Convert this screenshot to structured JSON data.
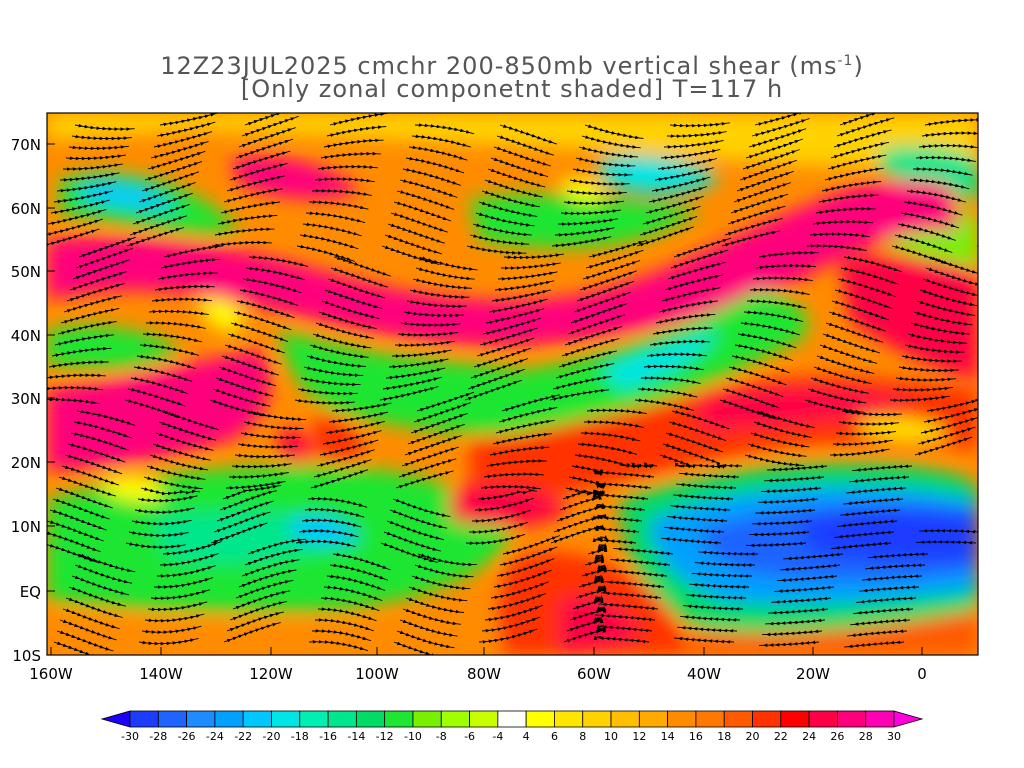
{
  "title": {
    "line1_main": "12Z23JUL2025 cmchr 200-850mb vertical shear (ms",
    "line1_sup": "-1",
    "line1_end": ")",
    "line2": "[Only zonal componetnt shaded] T=117 h"
  },
  "map": {
    "lat_labels": [
      "70N",
      "60N",
      "50N",
      "40N",
      "30N",
      "20N",
      "10N",
      "EQ",
      "10S"
    ],
    "lon_labels": [
      "160W",
      "140W",
      "120W",
      "100W",
      "80W",
      "60W",
      "40W",
      "20W",
      "0"
    ]
  },
  "colorbar": {
    "tick_labels": [
      "-30",
      "-28",
      "-26",
      "-24",
      "-22",
      "-20",
      "-18",
      "-16",
      "-14",
      "-12",
      "-10",
      "-8",
      "-6",
      "-4",
      "4",
      "6",
      "8",
      "10",
      "12",
      "14",
      "16",
      "18",
      "20",
      "22",
      "24",
      "26",
      "28",
      "30"
    ],
    "colors": [
      "#1d00fa",
      "#1e3cff",
      "#1f64ff",
      "#1e8cff",
      "#00a0ff",
      "#00c8ff",
      "#00e6e6",
      "#00f0b4",
      "#00e68c",
      "#00dc64",
      "#1ee632",
      "#78f000",
      "#a0ff00",
      "#c8ff00",
      "#ffffff",
      "#ffff00",
      "#ffe600",
      "#ffd200",
      "#ffbe00",
      "#ffaa00",
      "#ff8c00",
      "#ff7800",
      "#ff5a00",
      "#ff3200",
      "#ff0000",
      "#ff0046",
      "#ff007d",
      "#ff00b4",
      "#ff00dc"
    ]
  }
}
